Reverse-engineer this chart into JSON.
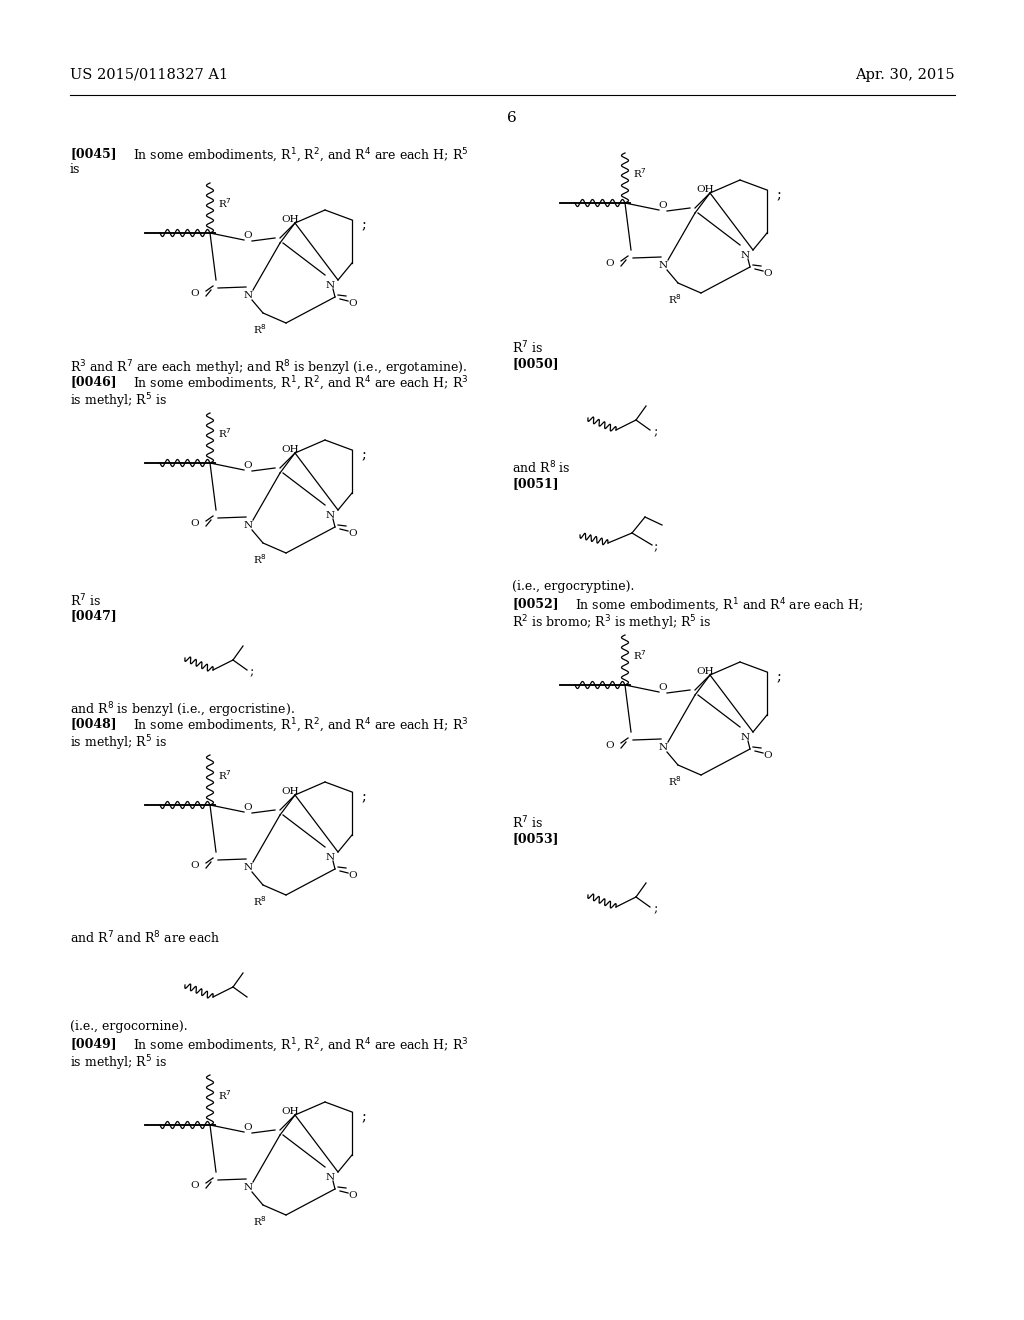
{
  "patent_number": "US 2015/0118327 A1",
  "patent_date": "Apr. 30, 2015",
  "page_number": "6",
  "bg_color": "#ffffff",
  "font_size_body": 9,
  "font_size_struct_label": 8
}
